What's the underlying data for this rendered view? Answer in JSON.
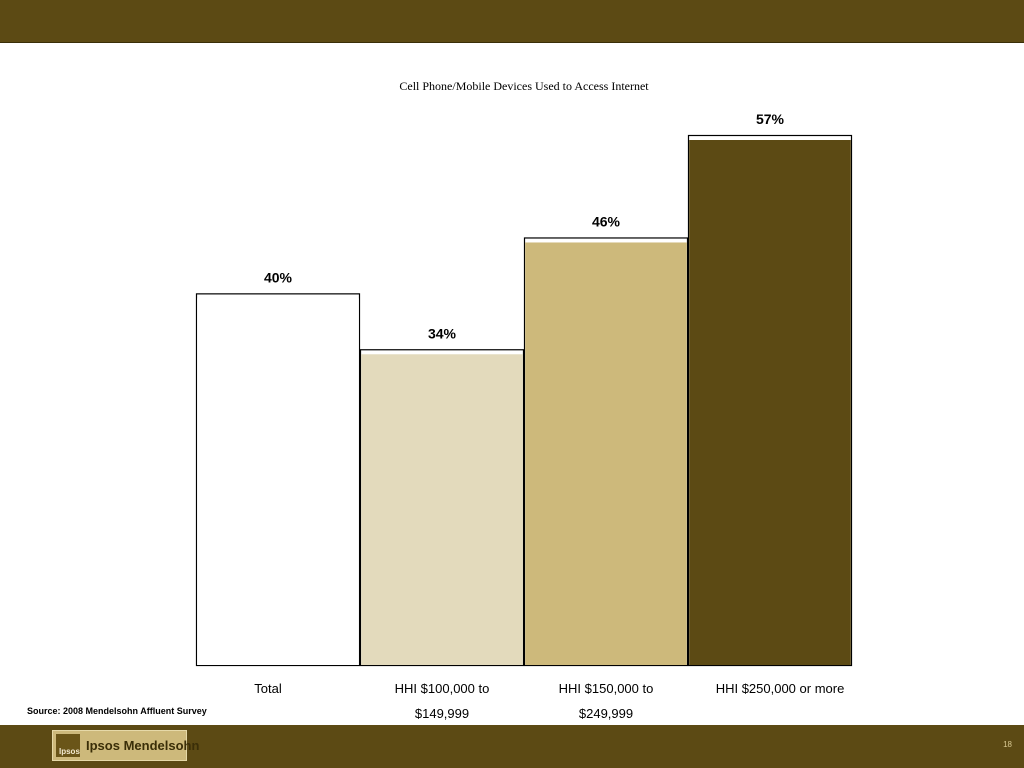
{
  "chart_data": {
    "type": "bar",
    "title": "Cell Phone/Mobile Devices Used to Access Internet",
    "categories": [
      [
        "Total"
      ],
      [
        "HHI $100,000 to",
        "$149,999"
      ],
      [
        "HHI $150,000 to",
        "$249,999"
      ],
      [
        "HHI $250,000 or more"
      ]
    ],
    "values": [
      40,
      34,
      46,
      57
    ],
    "data_labels": [
      "40%",
      "34%",
      "46%",
      "57%"
    ],
    "colors": [
      "#ffffff",
      "#e3dabc",
      "#cdb97b",
      "#5c4a14"
    ],
    "ylim": [
      0,
      60
    ],
    "grid": false,
    "legend": "none"
  },
  "source": "Source: 2008 Mendelsohn Affluent Survey",
  "footer": {
    "logo_text": "Ipsos Mendelsohn",
    "logo_mark": "Ipsos",
    "page_number": "18"
  },
  "theme": {
    "band_color": "#5c4a14"
  }
}
